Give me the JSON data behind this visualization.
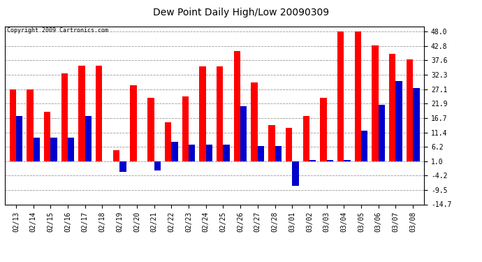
{
  "title": "Dew Point Daily High/Low 20090309",
  "copyright": "Copyright 2009 Cartronics.com",
  "categories": [
    "02/13",
    "02/14",
    "02/15",
    "02/16",
    "02/17",
    "02/18",
    "02/19",
    "02/20",
    "02/21",
    "02/22",
    "02/23",
    "02/24",
    "02/25",
    "02/26",
    "02/27",
    "02/28",
    "03/01",
    "03/02",
    "03/03",
    "03/04",
    "03/05",
    "03/06",
    "03/07",
    "03/08"
  ],
  "high_values": [
    27.1,
    27.1,
    19.0,
    33.0,
    35.6,
    35.6,
    5.0,
    28.5,
    24.0,
    15.0,
    24.5,
    35.5,
    35.5,
    41.0,
    29.5,
    14.0,
    13.0,
    17.5,
    24.0,
    48.0,
    48.0,
    43.0,
    40.0,
    38.0
  ],
  "low_values": [
    17.5,
    9.5,
    9.5,
    9.5,
    17.5,
    1.0,
    -3.0,
    1.0,
    -2.5,
    8.0,
    7.0,
    7.0,
    7.0,
    21.0,
    6.5,
    6.5,
    -8.0,
    1.5,
    1.5,
    1.5,
    12.0,
    21.5,
    30.0,
    27.5
  ],
  "high_color": "#ff0000",
  "low_color": "#0000cc",
  "background_color": "#ffffff",
  "grid_color": "#999999",
  "ytick_labels": [
    "48.0",
    "42.8",
    "37.6",
    "32.3",
    "27.1",
    "21.9",
    "16.7",
    "11.4",
    "6.2",
    "1.0",
    "-4.2",
    "-9.5",
    "-14.7"
  ],
  "ytick_values": [
    48.0,
    42.8,
    37.6,
    32.3,
    27.1,
    21.9,
    16.7,
    11.4,
    6.2,
    1.0,
    -4.2,
    -9.5,
    -14.7
  ],
  "ylim": [
    -14.7,
    50.0
  ],
  "baseline": 1.0,
  "bar_width": 0.38
}
